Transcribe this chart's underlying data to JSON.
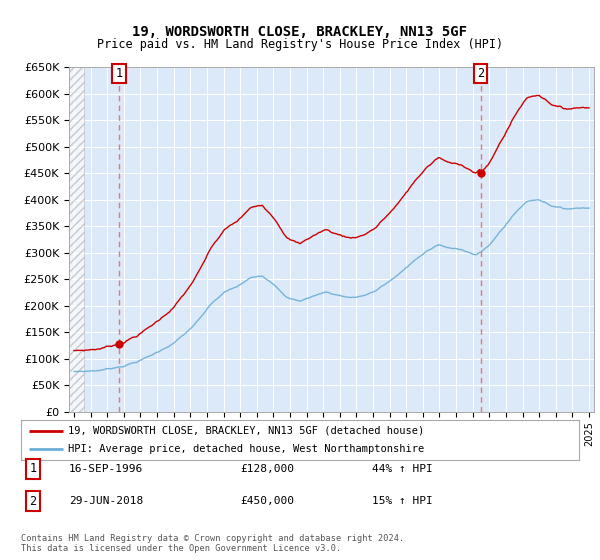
{
  "title": "19, WORDSWORTH CLOSE, BRACKLEY, NN13 5GF",
  "subtitle": "Price paid vs. HM Land Registry's House Price Index (HPI)",
  "background_color": "#ffffff",
  "plot_bg_color": "#dce9f8",
  "grid_color": "#ffffff",
  "hpi_line_color": "#6baed6",
  "price_line_color": "#cc0000",
  "marker_color": "#cc0000",
  "dashed_line_color": "#e87878",
  "sale1_x": 1996.71,
  "sale1_y": 128000,
  "sale1_label": "1",
  "sale1_date": "16-SEP-1996",
  "sale1_price": "£128,000",
  "sale1_hpi": "44% ↑ HPI",
  "sale2_x": 2018.49,
  "sale2_y": 450000,
  "sale2_label": "2",
  "sale2_date": "29-JUN-2018",
  "sale2_price": "£450,000",
  "sale2_hpi": "15% ↑ HPI",
  "legend_label_price": "19, WORDSWORTH CLOSE, BRACKLEY, NN13 5GF (detached house)",
  "legend_label_hpi": "HPI: Average price, detached house, West Northamptonshire",
  "footer1": "Contains HM Land Registry data © Crown copyright and database right 2024.",
  "footer2": "This data is licensed under the Open Government Licence v3.0.",
  "ylim": [
    0,
    650000
  ],
  "ytick_labels": [
    "£0",
    "£50K",
    "£100K",
    "£150K",
    "£200K",
    "£250K",
    "£300K",
    "£350K",
    "£400K",
    "£450K",
    "£500K",
    "£550K",
    "£600K",
    "£650K"
  ],
  "yticks": [
    0,
    50000,
    100000,
    150000,
    200000,
    250000,
    300000,
    350000,
    400000,
    450000,
    500000,
    550000,
    600000,
    650000
  ],
  "xlim_start": 1993.7,
  "xlim_end": 2025.3,
  "hatch_end": 1994.6
}
